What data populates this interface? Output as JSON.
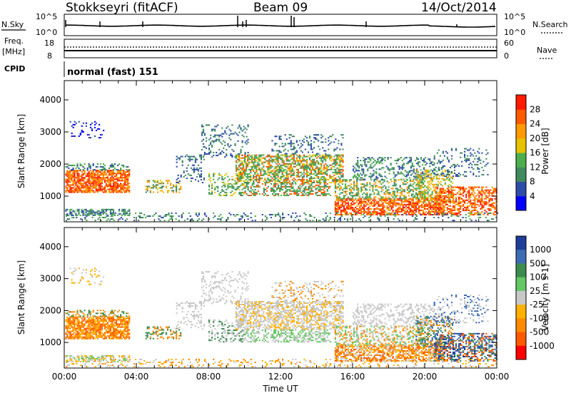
{
  "header": {
    "station": "Stokkseyri (fitACF)",
    "beam": "Beam 09",
    "date": "14/Oct/2014"
  },
  "sky_panel": {
    "left_label": "N.Sky",
    "right_label": "N.Search",
    "y_ticks_left": [
      "10^5",
      "10^0"
    ],
    "y_ticks_right": [
      "10^5",
      "10^0"
    ]
  },
  "freq_panel": {
    "left_label_line1": "Freq.",
    "left_label_line2": "[MHz]",
    "left_ticks": [
      "18",
      "8"
    ],
    "right_label": "Nave",
    "right_ticks": [
      "60",
      "0"
    ],
    "cpid_label": "CPID",
    "cpid_value": "normal (fast) 151"
  },
  "colors": {
    "power_scale": [
      "#0000ff",
      "#2e4ca8",
      "#3f8a5f",
      "#4cae4c",
      "#e6c200",
      "#ff9a00",
      "#ff5a00",
      "#ff1a00"
    ],
    "velocity_scale": [
      "#ff0000",
      "#ff5a00",
      "#ff8a00",
      "#ffb000",
      "#c8c8c8",
      "#64c864",
      "#3c8c50",
      "#3c6cb4",
      "#1e3c9a"
    ],
    "gray_ground": "#c8c8c8"
  },
  "chart_data": [
    {
      "type": "heatmap",
      "title": "",
      "ylabel": "Slant Range [km]",
      "xlabel": "",
      "ylim": [
        200,
        4600
      ],
      "y_ticks": [
        "4000",
        "3000",
        "2000",
        "1000"
      ],
      "y_tick_values": [
        4000,
        3000,
        2000,
        1000
      ],
      "x_range_hours": [
        0,
        24
      ],
      "colorbar": {
        "label": "Power [dB]",
        "tick_labels": [
          "28",
          "24",
          "20",
          "16",
          "12",
          "8",
          "4"
        ],
        "tick_values": [
          28,
          24,
          20,
          16,
          12,
          8,
          4
        ],
        "range": [
          0,
          32
        ]
      }
    },
    {
      "type": "heatmap",
      "title": "",
      "ylabel": "Slant Range [km]",
      "xlabel": "Time UT",
      "ylim": [
        200,
        4600
      ],
      "y_ticks": [
        "4000",
        "3000",
        "2000",
        "1000"
      ],
      "y_tick_values": [
        4000,
        3000,
        2000,
        1000
      ],
      "x_ticks": [
        "00:00",
        "04:00",
        "08:00",
        "12:00",
        "16:00",
        "20:00",
        "00:00"
      ],
      "x_range_hours": [
        0,
        24
      ],
      "colorbar": {
        "label": "Velocity [m s-1]",
        "tick_labels": [
          "1000",
          "500",
          "100",
          "25",
          "-25",
          "-100",
          "-500",
          "-1000"
        ]
      }
    }
  ]
}
